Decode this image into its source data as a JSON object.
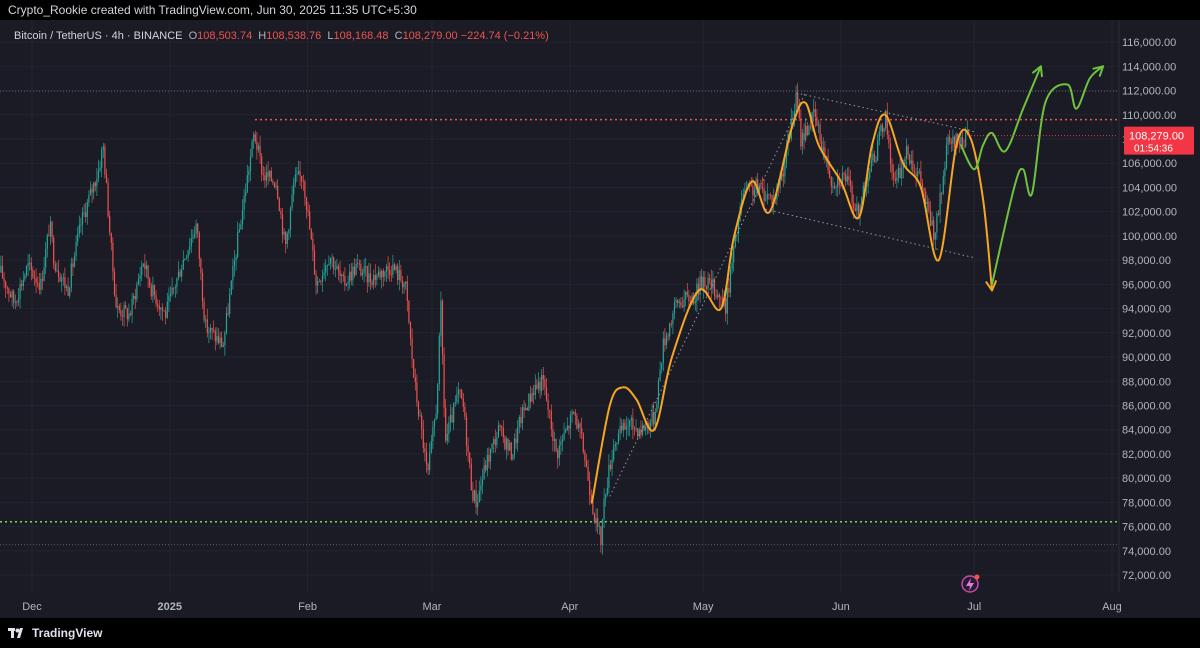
{
  "header": {
    "credit": "Crypto_Rookie created with TradingView.com, Jun 30, 2025 11:35 UTC+5:30"
  },
  "legend": {
    "symbol": "Bitcoin / TetherUS · 4h · BINANCE",
    "open_label": "O",
    "open": "108,503.74",
    "high_label": "H",
    "high": "108,538.76",
    "low_label": "L",
    "low": "108,168.48",
    "close_label": "C",
    "close": "108,279.00",
    "change": "−224.74 (−0.21%)"
  },
  "price_tag": {
    "price": "108,279.00",
    "countdown": "01:54:36"
  },
  "footer": {
    "brand": "TradingView"
  },
  "colors": {
    "background": "#1a1b24",
    "up": "#26a69a",
    "down": "#ef5350",
    "projection_orange": "#f5a623",
    "projection_green": "#6fc23f",
    "resistance": "#ef5350",
    "support": "#7cd65a",
    "tag": "#f23645"
  },
  "chart_data": {
    "type": "candlestick",
    "symbol": "Bitcoin / TetherUS",
    "interval": "4h",
    "exchange": "BINANCE",
    "x_tick_labels": [
      "Dec",
      "2025",
      "Feb",
      "Mar",
      "Apr",
      "May",
      "Jun",
      "Jul",
      "Aug"
    ],
    "x_tick_dates": [
      "2024-12-01",
      "2025-01-01",
      "2025-02-01",
      "2025-03-01",
      "2025-04-01",
      "2025-05-01",
      "2025-06-01",
      "2025-07-01",
      "2025-08-01"
    ],
    "y_ticks": [
      72000,
      74000,
      76000,
      78000,
      80000,
      82000,
      84000,
      86000,
      88000,
      90000,
      92000,
      94000,
      96000,
      98000,
      100000,
      102000,
      104000,
      106000,
      108000,
      110000,
      112000,
      114000,
      116000
    ],
    "y_tick_labels": [
      "72,000.00",
      "74,000.00",
      "76,000.00",
      "78,000.00",
      "80,000.00",
      "82,000.00",
      "84,000.00",
      "86,000.00",
      "88,000.00",
      "90,000.00",
      "92,000.00",
      "94,000.00",
      "96,000.00",
      "98,000.00",
      "100,000.00",
      "102,000.00",
      "104,000.00",
      "106,000.00",
      "108,000.00",
      "110,000.00",
      "112,000.00",
      "114,000.00",
      "116,000.00"
    ],
    "ylim": [
      70600,
      117000
    ],
    "price_path": [
      [
        "2024-11-24",
        97000
      ],
      [
        "2024-11-27",
        94500
      ],
      [
        "2024-11-30",
        97500
      ],
      [
        "2024-12-03",
        96000
      ],
      [
        "2024-12-05",
        101000
      ],
      [
        "2024-12-06",
        98000
      ],
      [
        "2024-12-09",
        95500
      ],
      [
        "2024-12-12",
        101000
      ],
      [
        "2024-12-16",
        105500
      ],
      [
        "2024-12-17",
        107500
      ],
      [
        "2024-12-19",
        98000
      ],
      [
        "2024-12-20",
        94000
      ],
      [
        "2024-12-23",
        93500
      ],
      [
        "2024-12-26",
        98000
      ],
      [
        "2024-12-28",
        95500
      ],
      [
        "2024-12-31",
        93500
      ],
      [
        "2025-01-04",
        98000
      ],
      [
        "2025-01-07",
        101000
      ],
      [
        "2025-01-09",
        92500
      ],
      [
        "2025-01-13",
        91000
      ],
      [
        "2025-01-16",
        99000
      ],
      [
        "2025-01-20",
        108500
      ],
      [
        "2025-01-22",
        105000
      ],
      [
        "2025-01-25",
        104500
      ],
      [
        "2025-01-27",
        99000
      ],
      [
        "2025-01-29",
        104500
      ],
      [
        "2025-01-31",
        105000
      ],
      [
        "2025-02-03",
        96000
      ],
      [
        "2025-02-06",
        98500
      ],
      [
        "2025-02-09",
        96000
      ],
      [
        "2025-02-12",
        97500
      ],
      [
        "2025-02-15",
        96500
      ],
      [
        "2025-02-20",
        97500
      ],
      [
        "2025-02-23",
        96000
      ],
      [
        "2025-02-25",
        88000
      ],
      [
        "2025-02-27",
        83000
      ],
      [
        "2025-02-28",
        80000
      ],
      [
        "2025-03-02",
        86000
      ],
      [
        "2025-03-03",
        94000
      ],
      [
        "2025-03-04",
        83000
      ],
      [
        "2025-03-07",
        87000
      ],
      [
        "2025-03-08",
        86000
      ],
      [
        "2025-03-10",
        79000
      ],
      [
        "2025-03-11",
        78000
      ],
      [
        "2025-03-13",
        81000
      ],
      [
        "2025-03-16",
        84000
      ],
      [
        "2025-03-19",
        82000
      ],
      [
        "2025-03-21",
        85000
      ],
      [
        "2025-03-24",
        87500
      ],
      [
        "2025-03-26",
        88000
      ],
      [
        "2025-03-29",
        82000
      ],
      [
        "2025-04-02",
        85500
      ],
      [
        "2025-04-04",
        82500
      ],
      [
        "2025-04-07",
        76000
      ],
      [
        "2025-04-08",
        75000
      ],
      [
        "2025-04-09",
        79000
      ],
      [
        "2025-04-11",
        83000
      ],
      [
        "2025-04-14",
        84500
      ],
      [
        "2025-04-17",
        84000
      ],
      [
        "2025-04-20",
        85000
      ],
      [
        "2025-04-22",
        91000
      ],
      [
        "2025-04-25",
        94500
      ],
      [
        "2025-04-29",
        95000
      ],
      [
        "2025-05-01",
        96500
      ],
      [
        "2025-05-04",
        95500
      ],
      [
        "2025-05-06",
        94000
      ],
      [
        "2025-05-08",
        99000
      ],
      [
        "2025-05-10",
        103500
      ],
      [
        "2025-05-13",
        104000
      ],
      [
        "2025-05-17",
        103000
      ],
      [
        "2025-05-19",
        105500
      ],
      [
        "2025-05-22",
        111500
      ],
      [
        "2025-05-23",
        108000
      ],
      [
        "2025-05-26",
        110000
      ],
      [
        "2025-05-30",
        104500
      ],
      [
        "2025-06-02",
        105000
      ],
      [
        "2025-06-05",
        101500
      ],
      [
        "2025-06-06",
        104000
      ],
      [
        "2025-06-09",
        107000
      ],
      [
        "2025-06-11",
        110000
      ],
      [
        "2025-06-13",
        104000
      ],
      [
        "2025-06-16",
        107000
      ],
      [
        "2025-06-19",
        104500
      ],
      [
        "2025-06-22",
        100000
      ],
      [
        "2025-06-23",
        102000
      ],
      [
        "2025-06-25",
        107500
      ],
      [
        "2025-06-30",
        108279
      ]
    ],
    "last_price": 108279,
    "resistance_level": 109600,
    "support_level": 76400,
    "range_lines": [
      111950,
      74500
    ],
    "trendline": [
      [
        "2025-04-10",
        78500
      ],
      [
        "2025-05-24",
        111800
      ]
    ],
    "channel_upper": [
      [
        "2025-05-22",
        111800
      ],
      [
        "2025-07-01",
        108600
      ]
    ],
    "channel_lower": [
      [
        "2025-05-15",
        102200
      ],
      [
        "2025-07-01",
        98200
      ]
    ],
    "orange_projection": [
      [
        "2025-04-06",
        78000
      ],
      [
        "2025-04-10",
        86000
      ],
      [
        "2025-04-13",
        87500
      ],
      [
        "2025-04-16",
        86500
      ],
      [
        "2025-04-20",
        84000
      ],
      [
        "2025-04-24",
        90000
      ],
      [
        "2025-04-30",
        95500
      ],
      [
        "2025-05-05",
        94000
      ],
      [
        "2025-05-08",
        100000
      ],
      [
        "2025-05-12",
        104500
      ],
      [
        "2025-05-16",
        102000
      ],
      [
        "2025-05-21",
        109000
      ],
      [
        "2025-05-24",
        111000
      ],
      [
        "2025-05-27",
        107500
      ],
      [
        "2025-06-01",
        104500
      ],
      [
        "2025-06-05",
        101500
      ],
      [
        "2025-06-08",
        107500
      ],
      [
        "2025-06-11",
        110000
      ],
      [
        "2025-06-15",
        106000
      ],
      [
        "2025-06-19",
        104000
      ],
      [
        "2025-06-23",
        98000
      ],
      [
        "2025-06-27",
        107500
      ],
      [
        "2025-06-30",
        108200
      ],
      [
        "2025-07-03",
        103000
      ],
      [
        "2025-07-05",
        95500
      ]
    ],
    "green_projection": [
      [
        "2025-07-05",
        96000
      ],
      [
        "2025-07-10",
        104000
      ],
      [
        "2025-07-12",
        105500
      ],
      [
        "2025-07-14",
        103500
      ],
      [
        "2025-07-17",
        111000
      ],
      [
        "2025-07-22",
        112500
      ],
      [
        "2025-07-24",
        110500
      ],
      [
        "2025-07-27",
        113000
      ],
      [
        "2025-07-30",
        114000
      ]
    ],
    "green_projection_small": [
      [
        "2025-06-28",
        107500
      ],
      [
        "2025-07-01",
        105500
      ],
      [
        "2025-07-03",
        107500
      ],
      [
        "2025-07-05",
        108500
      ],
      [
        "2025-07-08",
        107000
      ],
      [
        "2025-07-12",
        110500
      ],
      [
        "2025-07-16",
        114000
      ]
    ],
    "title": "",
    "xlabel": "",
    "ylabel": ""
  }
}
